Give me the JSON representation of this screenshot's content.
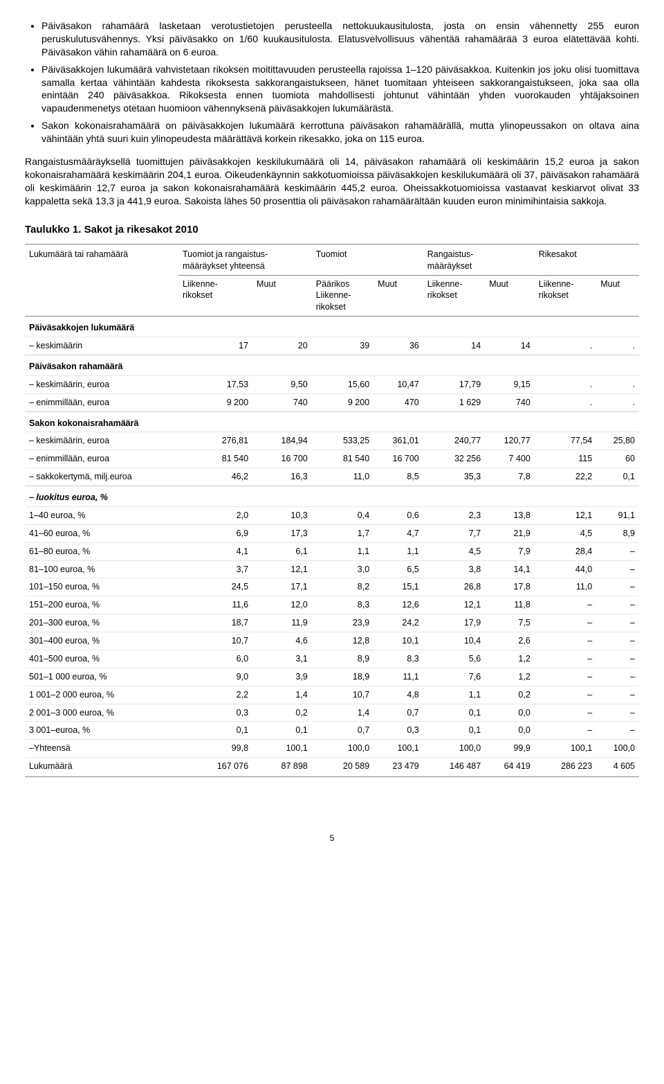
{
  "bullets": [
    "Päiväsakon rahamäärä lasketaan verotustietojen perusteella nettokuukausitulosta, josta on ensin vähennetty 255 euron peruskulutusvähennys. Yksi päiväsakko on 1/60 kuukausitulosta. Elatusvelvollisuus vähentää rahamäärää 3 euroa elätettävää kohti. Päiväsakon vähin rahamäärä on 6 euroa.",
    "Päiväsakkojen lukumäärä vahvistetaan rikoksen moitittavuuden perusteella rajoissa 1–120 päiväsakkoa. Kuitenkin jos joku olisi tuomittava samalla kertaa vähintään kahdesta rikoksesta sakkorangaistukseen, hänet tuomitaan yhteiseen sakkorangaistukseen, joka saa olla enintään 240 päiväsakkoa. Rikoksesta ennen tuomiota mahdollisesti johtunut vähintään yhden vuorokauden yhtäjaksoinen vapaudenmenetys otetaan huomioon vähennyksenä päiväsakkojen lukumäärästä.",
    "Sakon kokonaisrahamäärä on päiväsakkojen lukumäärä kerrottuna päiväsakon rahamäärällä, mutta ylinopeussakon on oltava aina vähintään yhtä suuri kuin ylinopeudesta määrättävä korkein rikesakko, joka on 115 euroa."
  ],
  "paragraph": "Rangaistusmääräyksellä tuomittujen päiväsakkojen keskilukumäärä oli 14, päiväsakon rahamäärä oli keskimäärin 15,2 euroa ja sakon kokonaisrahamäärä keskimäärin 204,1 euroa. Oikeudenkäynnin sakkotuomioissa päiväsakkojen keskilukumäärä oli 37, päiväsakon rahamäärä oli keskimäärin 12,7 euroa ja sakon kokonaisrahamäärä keskimäärin 445,2 euroa. Oheissakkotuomioissa vastaavat keskiarvot olivat 33 kappaletta sekä 13,3 ja 441,9 euroa. Sakoista lähes 50 prosenttia oli päiväsakon rahamäärältään kuuden euron minimihintaisia sakkoja.",
  "table": {
    "title": "Taulukko 1. Sakot ja rikesakot 2010",
    "corner": "Lukumäärä tai rahamäärä",
    "groups": [
      "Tuomiot ja rangaistus-\nmääräykset yhteensä",
      "Tuomiot",
      "Rangaistus-\nmääräykset",
      "Rikesakot"
    ],
    "subcols": [
      "Liikenne-\nrikokset",
      "Muut",
      "Päärikos\nLiikenne-\nrikokset",
      "Muut",
      "Liikenne-\nrikokset",
      "Muut",
      "Liikenne-\nrikokset",
      "Muut"
    ],
    "sections": [
      {
        "header": "Päiväsakkojen lukumäärä",
        "rows": [
          {
            "label": "– keskimäärin",
            "v": [
              "17",
              "20",
              "39",
              "36",
              "14",
              "14",
              ".",
              "."
            ]
          }
        ]
      },
      {
        "header": "Päiväsakon rahamäärä",
        "rows": [
          {
            "label": "– keskimäärin, euroa",
            "v": [
              "17,53",
              "9,50",
              "15,60",
              "10,47",
              "17,79",
              "9,15",
              ".",
              "."
            ]
          },
          {
            "label": "– enimmillään, euroa",
            "v": [
              "9 200",
              "740",
              "9 200",
              "470",
              "1 629",
              "740",
              ".",
              "."
            ]
          }
        ]
      },
      {
        "header": "Sakon kokonaisrahamäärä",
        "rows": [
          {
            "label": "– keskimäärin, euroa",
            "v": [
              "276,81",
              "184,94",
              "533,25",
              "361,01",
              "240,77",
              "120,77",
              "77,54",
              "25,80"
            ]
          },
          {
            "label": "– enimmillään, euroa",
            "v": [
              "81 540",
              "16 700",
              "81 540",
              "16 700",
              "32 256",
              "7 400",
              "115",
              "60"
            ]
          },
          {
            "label": "– sakkokertymä, milj.euroa",
            "v": [
              "46,2",
              "16,3",
              "11,0",
              "8,5",
              "35,3",
              "7,8",
              "22,2",
              "0,1"
            ]
          }
        ]
      },
      {
        "header": "– luokitus euroa, %",
        "italic": true,
        "rows": [
          {
            "label": "1–40 euroa, %",
            "v": [
              "2,0",
              "10,3",
              "0,4",
              "0,6",
              "2,3",
              "13,8",
              "12,1",
              "91,1"
            ]
          },
          {
            "label": "41–60 euroa, %",
            "v": [
              "6,9",
              "17,3",
              "1,7",
              "4,7",
              "7,7",
              "21,9",
              "4,5",
              "8,9"
            ]
          },
          {
            "label": "61–80 euroa, %",
            "v": [
              "4,1",
              "6,1",
              "1,1",
              "1,1",
              "4,5",
              "7,9",
              "28,4",
              "–"
            ]
          },
          {
            "label": "81–100 euroa, %",
            "v": [
              "3,7",
              "12,1",
              "3,0",
              "6,5",
              "3,8",
              "14,1",
              "44,0",
              "–"
            ]
          },
          {
            "label": "101–150 euroa, %",
            "v": [
              "24,5",
              "17,1",
              "8,2",
              "15,1",
              "26,8",
              "17,8",
              "11,0",
              "–"
            ]
          },
          {
            "label": "151–200 euroa, %",
            "v": [
              "11,6",
              "12,0",
              "8,3",
              "12,6",
              "12,1",
              "11,8",
              "–",
              "–"
            ]
          },
          {
            "label": "201–300 euroa, %",
            "v": [
              "18,7",
              "11,9",
              "23,9",
              "24,2",
              "17,9",
              "7,5",
              "–",
              "–"
            ]
          },
          {
            "label": "301–400 euroa, %",
            "v": [
              "10,7",
              "4,6",
              "12,8",
              "10,1",
              "10,4",
              "2,6",
              "–",
              "–"
            ]
          },
          {
            "label": "401–500 euroa, %",
            "v": [
              "6,0",
              "3,1",
              "8,9",
              "8,3",
              "5,6",
              "1,2",
              "–",
              "–"
            ]
          },
          {
            "label": "501–1 000 euroa, %",
            "v": [
              "9,0",
              "3,9",
              "18,9",
              "11,1",
              "7,6",
              "1,2",
              "–",
              "–"
            ]
          },
          {
            "label": "1 001–2 000 euroa, %",
            "v": [
              "2,2",
              "1,4",
              "10,7",
              "4,8",
              "1,1",
              "0,2",
              "–",
              "–"
            ]
          },
          {
            "label": "2 001–3 000 euroa, %",
            "v": [
              "0,3",
              "0,2",
              "1,4",
              "0,7",
              "0,1",
              "0,0",
              "–",
              "–"
            ]
          },
          {
            "label": "3 001–euroa, %",
            "v": [
              "0,1",
              "0,1",
              "0,7",
              "0,3",
              "0,1",
              "0,0",
              "–",
              "–"
            ]
          },
          {
            "label": "–Yhteensä",
            "v": [
              "99,8",
              "100,1",
              "100,0",
              "100,1",
              "100,0",
              "99,9",
              "100,1",
              "100,0"
            ]
          },
          {
            "label": "Lukumäärä",
            "v": [
              "167 076",
              "87 898",
              "20 589",
              "23 479",
              "146 487",
              "64 419",
              "286 223",
              "4 605"
            ]
          }
        ]
      }
    ]
  },
  "page_number": "5"
}
